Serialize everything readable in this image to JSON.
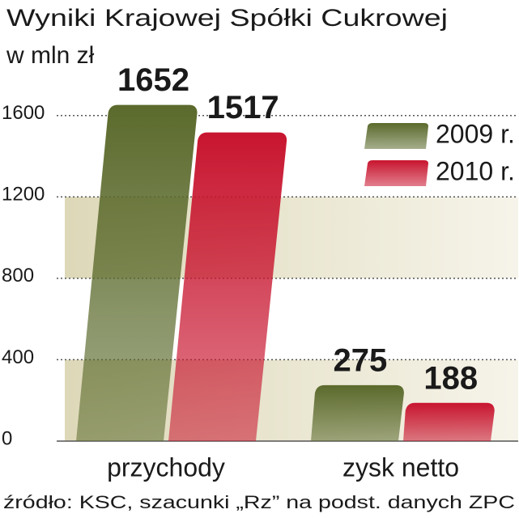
{
  "chart_data": {
    "type": "bar",
    "title": "Wyniki Krajowej Spółki Cukrowej",
    "subtitle": "w mln zł",
    "source": "źródło: KSC, szacunki „Rz” na podst. danych ZPC",
    "categories": [
      "przychody",
      "zysk netto"
    ],
    "series": [
      {
        "name": "2009 r.",
        "color": "#5b6a2c",
        "values": [
          1652,
          275
        ]
      },
      {
        "name": "2010 r.",
        "color": "#c8152f",
        "values": [
          1517,
          188
        ]
      }
    ],
    "ylim": [
      0,
      1750
    ],
    "yticks": [
      0,
      400,
      800,
      1200,
      1600
    ],
    "grid": true,
    "legend": "top-right"
  }
}
